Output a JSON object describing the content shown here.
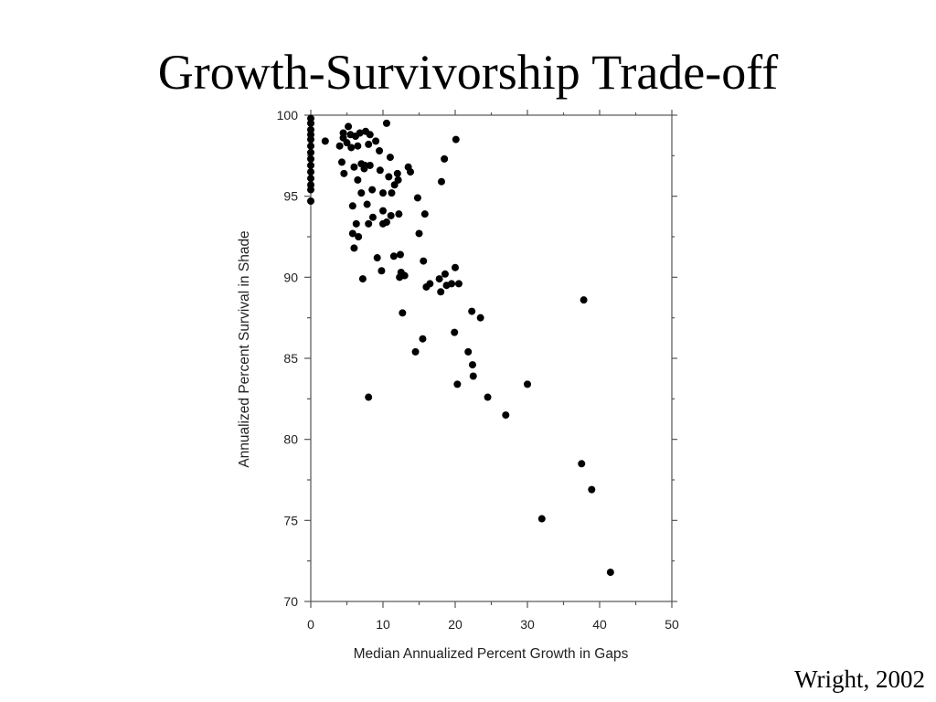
{
  "slide": {
    "title": "Growth-Survivorship Trade-off",
    "citation": "Wright, 2002"
  },
  "chart_data": {
    "type": "scatter",
    "xlabel": "Median Annualized Percent Growth in Gaps",
    "ylabel": "Annualized Percent Survival in Shade",
    "xlim": [
      0,
      50
    ],
    "ylim": [
      70,
      100
    ],
    "xticks": [
      0,
      10,
      20,
      30,
      40,
      50
    ],
    "yticks": [
      70,
      75,
      80,
      85,
      90,
      95,
      100
    ],
    "grid": false,
    "marker_color": "#000000",
    "points": [
      [
        0,
        99.8
      ],
      [
        0,
        99.5
      ],
      [
        0,
        99.1
      ],
      [
        0,
        98.8
      ],
      [
        0,
        98.5
      ],
      [
        0,
        98.1
      ],
      [
        0,
        97.7
      ],
      [
        0,
        97.3
      ],
      [
        0,
        96.9
      ],
      [
        0,
        96.5
      ],
      [
        0,
        96.1
      ],
      [
        0,
        95.7
      ],
      [
        0,
        95.4
      ],
      [
        0,
        94.7
      ],
      [
        2,
        98.4
      ],
      [
        4,
        98.1
      ],
      [
        4.3,
        97.1
      ],
      [
        4.5,
        98.6
      ],
      [
        4.5,
        98.9
      ],
      [
        4.6,
        96.4
      ],
      [
        5,
        98.3
      ],
      [
        5.2,
        99.3
      ],
      [
        5.5,
        98.8
      ],
      [
        5.6,
        98.0
      ],
      [
        5.8,
        94.4
      ],
      [
        5.8,
        92.7
      ],
      [
        6,
        91.8
      ],
      [
        6,
        96.8
      ],
      [
        6.2,
        98.7
      ],
      [
        6.3,
        93.3
      ],
      [
        6.5,
        98.1
      ],
      [
        6.5,
        96.0
      ],
      [
        6.6,
        92.5
      ],
      [
        6.8,
        98.9
      ],
      [
        7,
        97.0
      ],
      [
        7,
        95.2
      ],
      [
        7.2,
        89.9
      ],
      [
        7.4,
        96.7
      ],
      [
        7.5,
        96.9
      ],
      [
        7.6,
        99.0
      ],
      [
        7.8,
        94.5
      ],
      [
        8,
        82.6
      ],
      [
        8,
        98.2
      ],
      [
        8,
        93.3
      ],
      [
        8.2,
        96.9
      ],
      [
        8.2,
        98.8
      ],
      [
        8.5,
        95.4
      ],
      [
        8.6,
        93.7
      ],
      [
        9,
        98.4
      ],
      [
        9.2,
        91.2
      ],
      [
        9.5,
        97.8
      ],
      [
        9.6,
        96.6
      ],
      [
        9.8,
        90.4
      ],
      [
        10,
        95.2
      ],
      [
        10,
        93.3
      ],
      [
        10,
        94.1
      ],
      [
        10.5,
        99.5
      ],
      [
        10.5,
        93.4
      ],
      [
        10.8,
        96.2
      ],
      [
        11,
        97.4
      ],
      [
        11.1,
        93.8
      ],
      [
        11.2,
        95.2
      ],
      [
        11.5,
        91.3
      ],
      [
        11.6,
        95.7
      ],
      [
        12,
        96.4
      ],
      [
        12.1,
        96.0
      ],
      [
        12.2,
        93.9
      ],
      [
        12.3,
        90.0
      ],
      [
        12.4,
        91.4
      ],
      [
        12.5,
        90.3
      ],
      [
        12.7,
        87.8
      ],
      [
        13,
        90.1
      ],
      [
        13.5,
        96.8
      ],
      [
        13.8,
        96.5
      ],
      [
        14.5,
        85.4
      ],
      [
        14.8,
        94.9
      ],
      [
        15,
        92.7
      ],
      [
        15.5,
        86.2
      ],
      [
        15.6,
        91.0
      ],
      [
        15.8,
        93.9
      ],
      [
        16,
        89.4
      ],
      [
        16.5,
        89.6
      ],
      [
        17.8,
        89.9
      ],
      [
        18,
        89.1
      ],
      [
        18.1,
        95.9
      ],
      [
        18.5,
        97.3
      ],
      [
        18.6,
        90.2
      ],
      [
        18.8,
        89.5
      ],
      [
        19.5,
        89.6
      ],
      [
        19.9,
        86.6
      ],
      [
        20,
        90.6
      ],
      [
        20.1,
        98.5
      ],
      [
        20.3,
        83.4
      ],
      [
        20.5,
        89.6
      ],
      [
        21.8,
        85.4
      ],
      [
        22.3,
        87.9
      ],
      [
        22.4,
        84.6
      ],
      [
        22.5,
        83.9
      ],
      [
        23.5,
        87.5
      ],
      [
        24.5,
        82.6
      ],
      [
        27,
        81.5
      ],
      [
        30,
        83.4
      ],
      [
        32,
        75.1
      ],
      [
        37.5,
        78.5
      ],
      [
        37.8,
        88.6
      ],
      [
        38.9,
        76.9
      ],
      [
        41.5,
        71.8
      ]
    ]
  }
}
